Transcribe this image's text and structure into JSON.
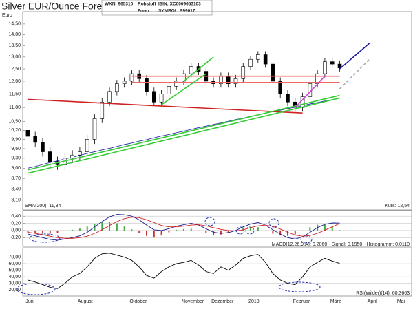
{
  "header": {
    "wkn": "WKN: 965310",
    "kind": "Rohstoff",
    "isin": "ISIN: XC0009653103",
    "market": "Forex",
    "symbol": "SYMBOL: 999017"
  },
  "chart_data": [
    {
      "type": "candlestick",
      "title": "Silver EUR/Ounce Forex",
      "y_label": "Euro",
      "categories": [
        "Juni",
        null,
        null,
        null,
        null,
        null,
        null,
        "August",
        null,
        null,
        null,
        null,
        null,
        null,
        "Oktober",
        null,
        null,
        null,
        null,
        null,
        null,
        "November",
        null,
        null,
        null,
        "Dezember",
        null,
        null,
        null,
        null,
        "2018",
        null,
        null,
        null,
        null,
        null,
        "Februar",
        null,
        null,
        null,
        null,
        "März",
        null,
        null,
        null,
        null,
        "April",
        null,
        null,
        null,
        "Mai",
        null
      ],
      "open": [
        10.2,
        10.0,
        9.8,
        9.5,
        9.2,
        9.1,
        9.3,
        9.4,
        9.5,
        9.9,
        10.6,
        11.2,
        11.6,
        11.9,
        12.0,
        12.3,
        12.1,
        11.6,
        11.2,
        11.5,
        11.8,
        12.0,
        12.3,
        12.6,
        12.4,
        12.0,
        11.9,
        12.2,
        11.9,
        12.1,
        12.6,
        12.9,
        13.1,
        12.7,
        12.0,
        11.5,
        11.2,
        11.0,
        11.4,
        11.9,
        12.3,
        12.8,
        12.7,
        null,
        null,
        null,
        null,
        null,
        null,
        null,
        null,
        null
      ],
      "high": [
        10.35,
        10.15,
        9.95,
        9.65,
        9.35,
        9.45,
        9.55,
        9.65,
        10.05,
        10.75,
        11.35,
        11.75,
        12.05,
        12.15,
        12.45,
        12.45,
        12.25,
        11.75,
        11.65,
        11.95,
        12.15,
        12.45,
        12.75,
        12.75,
        12.55,
        12.15,
        12.35,
        12.35,
        12.25,
        12.75,
        13.05,
        13.25,
        13.25,
        12.85,
        12.15,
        11.65,
        11.35,
        11.55,
        12.05,
        12.45,
        12.95,
        12.95,
        12.85,
        null,
        null,
        null,
        null,
        null,
        null,
        null,
        null,
        null
      ],
      "low": [
        9.85,
        9.65,
        9.35,
        9.05,
        8.95,
        8.95,
        9.15,
        9.25,
        9.35,
        9.75,
        10.45,
        11.05,
        11.45,
        11.75,
        11.85,
        11.95,
        11.45,
        11.05,
        11.05,
        11.35,
        11.65,
        11.85,
        12.15,
        12.25,
        11.85,
        11.75,
        11.75,
        11.75,
        11.75,
        11.95,
        12.45,
        12.75,
        12.55,
        11.85,
        11.35,
        11.05,
        10.85,
        10.85,
        11.25,
        11.75,
        12.15,
        12.55,
        12.39,
        null,
        null,
        null,
        null,
        null,
        null,
        null,
        null,
        null
      ],
      "close": [
        10.0,
        9.8,
        9.5,
        9.2,
        9.1,
        9.3,
        9.4,
        9.5,
        9.9,
        10.6,
        11.2,
        11.6,
        11.9,
        12.0,
        12.3,
        12.1,
        11.6,
        11.2,
        11.5,
        11.8,
        12.0,
        12.3,
        12.6,
        12.4,
        12.0,
        11.9,
        12.2,
        11.9,
        12.1,
        12.6,
        12.9,
        13.1,
        12.7,
        12.0,
        11.5,
        11.2,
        11.0,
        11.4,
        11.9,
        12.3,
        12.8,
        12.7,
        12.54,
        null,
        null,
        null,
        null,
        null,
        null,
        null,
        null,
        null
      ],
      "color": "#000000",
      "series": [
        {
          "name": "SMA(200): 11,34",
          "color": "#2a2ab0",
          "values": [
            9.0,
            9.05,
            9.11,
            9.17,
            9.22,
            9.28,
            9.33,
            9.39,
            9.45,
            9.5,
            9.56,
            9.61,
            9.67,
            9.73,
            9.78,
            9.84,
            9.89,
            9.95,
            10.01,
            10.06,
            10.12,
            10.17,
            10.23,
            10.29,
            10.34,
            10.4,
            10.45,
            10.51,
            10.57,
            10.62,
            10.68,
            10.73,
            10.79,
            10.85,
            10.9,
            10.96,
            11.01,
            11.07,
            11.13,
            11.18,
            11.24,
            11.29,
            11.34,
            null,
            null,
            null,
            null,
            null,
            null,
            null,
            null,
            null
          ]
        }
      ],
      "last_label": "Kurs: 12,54",
      "log_scale": true,
      "ylim": [
        8.0,
        15.0
      ],
      "yticks": [
        {
          "value": 14.5,
          "label": "14,50"
        },
        {
          "value": 14,
          "label": "14,00"
        },
        {
          "value": 13.5,
          "label": "13,50"
        },
        {
          "value": 13,
          "label": "13,00"
        },
        {
          "value": 12.5,
          "label": "12,50"
        },
        {
          "value": 12,
          "label": "12,00"
        },
        {
          "value": 11.5,
          "label": "11,50"
        },
        {
          "value": 11,
          "label": "11,00"
        },
        {
          "value": 10.5,
          "label": "10,50"
        },
        {
          "value": 10.2,
          "label": "10,20"
        },
        {
          "value": 9.9,
          "label": "9,90"
        },
        {
          "value": 9.6,
          "label": "9,60"
        },
        {
          "value": 9.3,
          "label": "9,30"
        },
        {
          "value": 9,
          "label": "9,00"
        },
        {
          "value": 8.7,
          "label": "8,70"
        },
        {
          "value": 8.4,
          "label": "8,40"
        },
        {
          "value": 8.1,
          "label": "8,10"
        }
      ],
      "grid": false,
      "trendlines": [
        {
          "x": [
            0,
            37
          ],
          "y": [
            11.3,
            10.8
          ],
          "color": "#d02020",
          "dashed": false
        },
        {
          "x": [
            14,
            42
          ],
          "y": [
            12.2,
            12.2
          ],
          "color": "#ee6666",
          "dashed": false
        },
        {
          "x": [
            14,
            42
          ],
          "y": [
            11.95,
            11.95
          ],
          "color": "#ee6666",
          "dashed": false
        },
        {
          "x": [
            0,
            42
          ],
          "y": [
            8.95,
            11.45
          ],
          "color": "#33cc33",
          "dashed": false
        },
        {
          "x": [
            0,
            42
          ],
          "y": [
            8.85,
            11.35
          ],
          "color": "#33cc33",
          "dashed": false
        },
        {
          "x": [
            18,
            24
          ],
          "y": [
            11.1,
            12.3
          ],
          "color": "#33cc33",
          "dashed": false
        },
        {
          "x": [
            21,
            25
          ],
          "y": [
            12.0,
            13.0
          ],
          "color": "#33cc33",
          "dashed": false
        },
        {
          "x": [
            36,
            40
          ],
          "y": [
            11.0,
            12.2
          ],
          "color": "#d040d0",
          "dashed": false
        },
        {
          "x": [
            42,
            46
          ],
          "y": [
            12.5,
            13.6
          ],
          "color": "#1a1aa0",
          "dashed": false
        },
        {
          "x": [
            42,
            46
          ],
          "y": [
            11.7,
            12.9
          ],
          "color": "#aaaaaa",
          "dashed": true
        }
      ]
    },
    {
      "type": "macd",
      "label": "MACD(12,26,9,A): 0,2060 - Signal: 0,1950 - Histogramm: 0,0110",
      "series": [
        {
          "color": "#1a1a90",
          "values": [
            -0.1,
            -0.15,
            -0.2,
            -0.25,
            -0.27,
            -0.24,
            -0.2,
            -0.15,
            -0.05,
            0.1,
            0.25,
            0.38,
            0.45,
            0.44,
            0.4,
            0.3,
            0.15,
            0.02,
            0.0,
            0.05,
            0.12,
            0.16,
            0.2,
            0.15,
            0.05,
            -0.05,
            -0.08,
            -0.06,
            0.0,
            0.1,
            0.18,
            0.22,
            0.15,
            0.02,
            -0.1,
            -0.2,
            -0.24,
            -0.18,
            -0.05,
            0.08,
            0.17,
            0.21,
            0.206,
            null,
            null,
            null,
            null,
            null,
            null,
            null,
            null,
            null
          ]
        },
        {
          "color": "#d02020",
          "values": [
            -0.05,
            -0.08,
            -0.12,
            -0.16,
            -0.2,
            -0.22,
            -0.22,
            -0.2,
            -0.16,
            -0.08,
            0.02,
            0.14,
            0.25,
            0.33,
            0.37,
            0.36,
            0.3,
            0.22,
            0.14,
            0.1,
            0.1,
            0.12,
            0.15,
            0.16,
            0.13,
            0.08,
            0.03,
            0.0,
            -0.01,
            0.02,
            0.08,
            0.13,
            0.15,
            0.11,
            0.04,
            -0.05,
            -0.13,
            -0.16,
            -0.14,
            -0.08,
            0.01,
            0.1,
            0.195,
            null,
            null,
            null,
            null,
            null,
            null,
            null,
            null,
            null
          ]
        }
      ],
      "histogram": [
        -0.05,
        -0.07,
        -0.08,
        -0.09,
        -0.07,
        -0.02,
        0.02,
        0.05,
        0.11,
        0.18,
        0.23,
        0.24,
        0.2,
        0.11,
        0.03,
        -0.06,
        -0.15,
        -0.2,
        -0.14,
        -0.05,
        0.02,
        0.04,
        0.05,
        -0.01,
        -0.08,
        -0.13,
        -0.11,
        -0.06,
        0.01,
        0.08,
        0.1,
        0.09,
        0.0,
        -0.09,
        -0.14,
        -0.15,
        -0.11,
        -0.02,
        0.09,
        0.16,
        0.16,
        0.11,
        0.011,
        null,
        null,
        null,
        null,
        null,
        null,
        null,
        null,
        null
      ],
      "up_color": "#44aa44",
      "down_color": "#cc3333",
      "ylim": [
        -0.33,
        0.5
      ],
      "yticks": [
        {
          "value": 0.4,
          "label": "0,40"
        },
        {
          "value": 0.2,
          "label": "0,20"
        },
        {
          "value": 0,
          "label": "0,00"
        },
        {
          "value": -0.2,
          "label": "-0,20"
        }
      ],
      "grid": true
    },
    {
      "type": "line",
      "label": "RSI(Wilder)(14): 60,3663",
      "color": "#000000",
      "values": [
        35,
        32,
        28,
        24,
        22,
        30,
        40,
        45,
        55,
        68,
        75,
        76,
        73,
        70,
        65,
        55,
        42,
        38,
        48,
        55,
        60,
        62,
        65,
        58,
        48,
        45,
        55,
        50,
        58,
        68,
        72,
        74,
        62,
        45,
        35,
        30,
        28,
        40,
        55,
        62,
        68,
        64,
        60.3663,
        null,
        null,
        null,
        null,
        null,
        null,
        null,
        null,
        null
      ],
      "ylim": [
        15,
        80
      ],
      "yticks": [
        {
          "value": 70,
          "label": "70,00"
        },
        {
          "value": 60,
          "label": "60,00"
        },
        {
          "value": 50,
          "label": "50,00"
        },
        {
          "value": 40,
          "label": "40,00"
        },
        {
          "value": 30,
          "label": "30,00"
        },
        {
          "value": 20,
          "label": "20,00"
        }
      ],
      "grid": true
    }
  ]
}
